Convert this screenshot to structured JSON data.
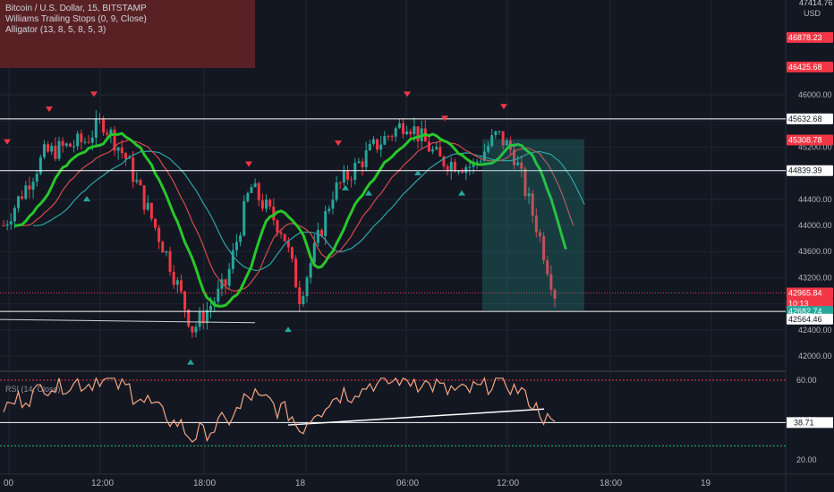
{
  "legend": {
    "title": "Bitcoin / U.S. Dollar, 15, BITSTAMP",
    "ind1": "Williams Trailing Stops (0, 9, Close)",
    "ind2": "Alligator (13, 8, 5, 8, 5, 3)"
  },
  "price_axis": {
    "currency": "USD",
    "top_clipped": "47414.76",
    "ticks": [
      "46000.00",
      "45600.00",
      "45200.00",
      "44800.00",
      "44400.00",
      "44000.00",
      "43600.00",
      "43200.00",
      "42800.00",
      "42400.00",
      "42000.00"
    ],
    "tick_values": [
      46000,
      45600,
      45200,
      44800,
      44400,
      44000,
      43600,
      43200,
      42800,
      42400,
      42000
    ]
  },
  "rsi_axis": {
    "label": "RSI (14, Close)",
    "ticks": [
      "60.00",
      "40.00",
      "20.00"
    ],
    "tick_values": [
      60,
      40,
      20
    ]
  },
  "time_axis": {
    "labels": [
      "00",
      "12:00",
      "18:00",
      "18",
      "06:00",
      "12:00",
      "18:00",
      "19"
    ]
  },
  "tags": [
    {
      "text": "46878.23",
      "value": 46878.23,
      "color": "#f23645"
    },
    {
      "text": "46425.68",
      "value": 46425.68,
      "color": "#f23645"
    },
    {
      "text": "45632.68",
      "value": 45632.68,
      "color": "#ffffff"
    },
    {
      "text": "45308.79",
      "value": 45308.79,
      "color": "#f23645"
    },
    {
      "text": "45308.78",
      "value": 45308.78,
      "color": "#f23645"
    },
    {
      "text": "44839.39",
      "value": 44839.39,
      "color": "#ffffff"
    },
    {
      "text": "42965.84",
      "value": 42965.84,
      "color": "#f23645"
    },
    {
      "text": "10:13",
      "value": 42965.84,
      "color": "#f23645"
    },
    {
      "text": "42682.74",
      "value": 42682.74,
      "color": "#26a69a"
    },
    {
      "text": "42564.46",
      "value": 42564.46,
      "color": "#ffffff"
    }
  ],
  "rsi_tags": [
    {
      "text": "38.71",
      "value": 38.71,
      "color": "#ffffff"
    }
  ],
  "colors": {
    "up": "#26a69a",
    "down": "#f23645",
    "alligator_lips": "#29c729",
    "alligator_teeth": "#d44a4a",
    "alligator_jaw": "#2ea4a6",
    "rsi": "#f4a582"
  },
  "chart_data": {
    "type": "candlestick",
    "title": "Bitcoin / U.S. Dollar, 15, BITSTAMP",
    "symbol": "BTCUSD",
    "timeframe": "15",
    "exchange": "BITSTAMP",
    "y_range": [
      41700,
      47500
    ],
    "horizontal_lines": [
      45632.68,
      44839.39,
      42682.74
    ],
    "last_price": 42965.84,
    "rsi_horizontal_lines": [
      38.71
    ],
    "approx_close_path": [
      {
        "t": 0,
        "v": 44000
      },
      {
        "t": 0.05,
        "v": 45100
      },
      {
        "t": 0.1,
        "v": 45300
      },
      {
        "t": 0.12,
        "v": 45600
      },
      {
        "t": 0.15,
        "v": 45000
      },
      {
        "t": 0.2,
        "v": 43500
      },
      {
        "t": 0.23,
        "v": 42400
      },
      {
        "t": 0.27,
        "v": 43100
      },
      {
        "t": 0.3,
        "v": 44600
      },
      {
        "t": 0.34,
        "v": 43900
      },
      {
        "t": 0.36,
        "v": 42900
      },
      {
        "t": 0.4,
        "v": 44500
      },
      {
        "t": 0.45,
        "v": 45200
      },
      {
        "t": 0.49,
        "v": 45600
      },
      {
        "t": 0.53,
        "v": 45000
      },
      {
        "t": 0.57,
        "v": 44900
      },
      {
        "t": 0.6,
        "v": 45400
      },
      {
        "t": 0.62,
        "v": 45100
      },
      {
        "t": 0.65,
        "v": 43900
      },
      {
        "t": 0.67,
        "v": 42960
      }
    ]
  }
}
